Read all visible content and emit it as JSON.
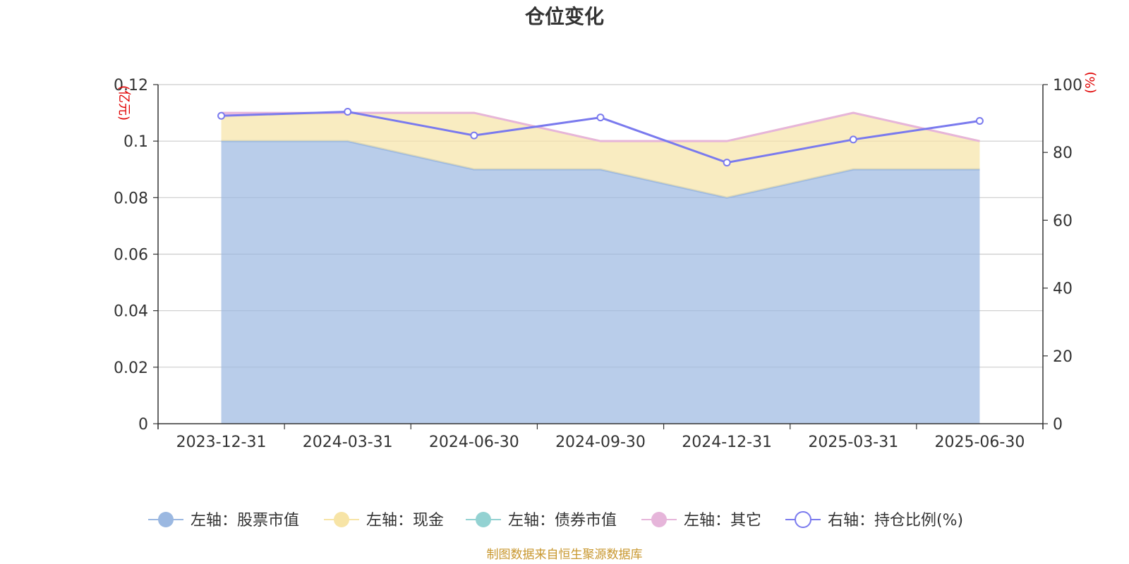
{
  "chart_data": {
    "type": "area",
    "title": "仓位变化",
    "categories": [
      "2023-12-31",
      "2024-03-31",
      "2024-06-30",
      "2024-09-30",
      "2024-12-31",
      "2025-03-31",
      "2025-06-30"
    ],
    "left_axis": {
      "unit": "(亿元)",
      "ylim": [
        0,
        0.12
      ],
      "ticks": [
        "0",
        "0.02",
        "0.04",
        "0.06",
        "0.08",
        "0.1",
        "0.12"
      ]
    },
    "right_axis": {
      "unit": "(%)",
      "ylim": [
        0,
        100
      ],
      "ticks": [
        "0",
        "20",
        "40",
        "60",
        "80",
        "100"
      ]
    },
    "series": [
      {
        "name": "左轴：股票市值",
        "axis": "left",
        "type": "area",
        "color": "#9bb8e1",
        "values": [
          0.1,
          0.1,
          0.09,
          0.09,
          0.08,
          0.09,
          0.09
        ]
      },
      {
        "name": "左轴：现金",
        "axis": "left",
        "type": "area",
        "color": "#f7e4a6",
        "values": [
          0.009,
          0.01,
          0.02,
          0.01,
          0.02,
          0.02,
          0.01
        ]
      },
      {
        "name": "左轴：债券市值",
        "axis": "left",
        "type": "area",
        "color": "#93d2d2",
        "values": [
          0,
          0,
          0,
          0,
          0,
          0,
          0
        ]
      },
      {
        "name": "左轴：其它",
        "axis": "left",
        "type": "area",
        "color": "#e6b5da",
        "values": [
          0.001,
          0,
          0,
          0,
          0,
          0,
          0
        ]
      },
      {
        "name": "右轴：持仓比例(%)",
        "axis": "right",
        "type": "line",
        "color": "#7a7aee",
        "values": [
          90.8,
          92.0,
          85.0,
          90.3,
          77.0,
          83.8,
          89.3
        ]
      }
    ],
    "grid": true,
    "legend_position": "bottom"
  },
  "source_note": "制图数据来自恒生聚源数据库"
}
